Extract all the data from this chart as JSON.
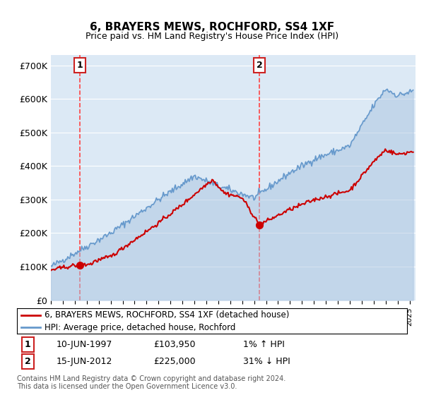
{
  "title": "6, BRAYERS MEWS, ROCHFORD, SS4 1XF",
  "subtitle": "Price paid vs. HM Land Registry's House Price Index (HPI)",
  "ylabel_ticks": [
    "£0",
    "£100K",
    "£200K",
    "£300K",
    "£400K",
    "£500K",
    "£600K",
    "£700K"
  ],
  "ytick_values": [
    0,
    100000,
    200000,
    300000,
    400000,
    500000,
    600000,
    700000
  ],
  "ylim": [
    0,
    730000
  ],
  "xlim_start": 1995.0,
  "xlim_end": 2025.5,
  "background_color": "#dce9f5",
  "plot_bg_color": "#dce9f5",
  "grid_color": "#ffffff",
  "sale1_date": 1997.44,
  "sale1_price": 103950,
  "sale2_date": 2012.44,
  "sale2_price": 225000,
  "sale1_label": "10-JUN-1997",
  "sale1_amount": "£103,950",
  "sale1_hpi": "1% ↑ HPI",
  "sale2_label": "15-JUN-2012",
  "sale2_amount": "£225,000",
  "sale2_hpi": "31% ↓ HPI",
  "legend_line1": "6, BRAYERS MEWS, ROCHFORD, SS4 1XF (detached house)",
  "legend_line2": "HPI: Average price, detached house, Rochford",
  "footnote": "Contains HM Land Registry data © Crown copyright and database right 2024.\nThis data is licensed under the Open Government Licence v3.0.",
  "line_color_red": "#cc0000",
  "line_color_blue": "#6699cc",
  "fill_color_blue": "#aac4e0",
  "dashed_color": "#ff4444",
  "box_color": "#cc2222"
}
